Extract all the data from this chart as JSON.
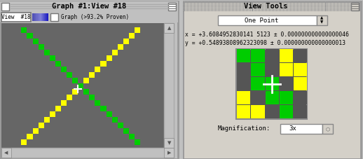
{
  "title_left": "Graph #1:View #18",
  "title_right": "View Tools",
  "panel_bg": "#c0c0c0",
  "right_bg": "#d4d0c8",
  "graph_bg": "#666666",
  "yellow": "#ffff00",
  "green": "#00cc00",
  "white": "#ffffff",
  "dark_gray": "#555555",
  "proven_text": "Graph (>93.2% Proven)",
  "dropdown_text": "One Point",
  "x_text": "x = +3.6084952830141 5123 ± 0.000000000000000046",
  "y_text": "y = +0.54893808962323098 ± 0.000000000000000013",
  "magnif_label": "Magnification:",
  "magnif_val": "3x",
  "pixel_colors": [
    [
      "#555555",
      "#00cc00",
      "#00cc00",
      "#555555",
      "#ffff00",
      "#ffff00"
    ],
    [
      "#555555",
      "#555555",
      "#00cc00",
      "#ffff00",
      "#ffff00",
      "#555555"
    ],
    [
      "#555555",
      "#555555",
      "#00cc00",
      "#00cc00",
      "#555555",
      "#555555"
    ],
    [
      "#555555",
      "#00cc00",
      "#555555",
      "#00cc00",
      "#555555",
      "#555555"
    ],
    [
      "#ffff00",
      "#ffff00",
      "#555555",
      "#555555",
      "#00cc00",
      "#555555"
    ],
    [
      "#ffff00",
      "#555555",
      "#555555",
      "#555555",
      "#555555",
      "#00cc00"
    ]
  ],
  "fig_width": 5.18,
  "fig_height": 2.27,
  "dpi": 100
}
